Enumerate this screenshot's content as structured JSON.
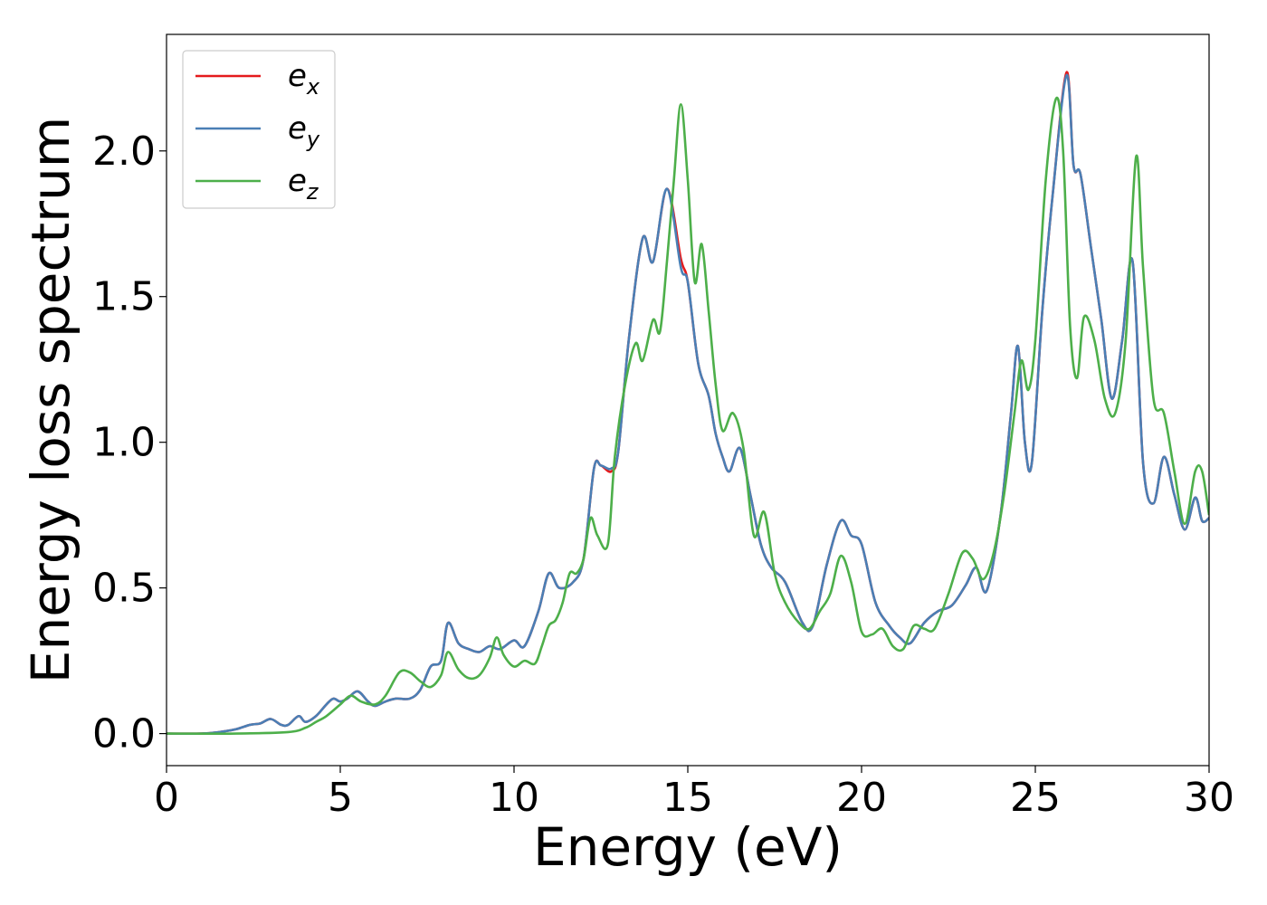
{
  "chart_data": {
    "type": "line",
    "xlabel": "Energy (eV)",
    "ylabel": "Energy loss spectrum",
    "xlim": [
      0,
      30
    ],
    "ylim": [
      -0.11,
      2.4
    ],
    "xticks": [
      0,
      5,
      10,
      15,
      20,
      25,
      30
    ],
    "xtick_labels": [
      "0",
      "5",
      "10",
      "15",
      "20",
      "25",
      "30"
    ],
    "yticks": [
      0.0,
      0.5,
      1.0,
      1.5,
      2.0
    ],
    "ytick_labels": [
      "0.0",
      "0.5",
      "1.0",
      "1.5",
      "2.0"
    ],
    "grid": false,
    "legend_position": "top-left",
    "series": [
      {
        "name": "e_x",
        "legend_base": "e",
        "legend_sub": "x",
        "color": "#e41a1c",
        "x": [
          0,
          1,
          1.5,
          2,
          2.4,
          2.7,
          3.0,
          3.3,
          3.5,
          3.8,
          4.0,
          4.3,
          4.6,
          4.8,
          5.0,
          5.2,
          5.5,
          5.8,
          6.0,
          6.3,
          6.6,
          7.0,
          7.3,
          7.6,
          7.9,
          8.1,
          8.4,
          8.7,
          9.0,
          9.3,
          9.6,
          10.0,
          10.3,
          10.7,
          11.0,
          11.3,
          11.7,
          12.0,
          12.3,
          12.5,
          12.8,
          13.0,
          13.3,
          13.7,
          14.0,
          14.4,
          14.8,
          15.0,
          15.3,
          15.6,
          15.8,
          16.0,
          16.2,
          16.5,
          16.8,
          17.1,
          17.4,
          17.8,
          18.3,
          18.6,
          19.0,
          19.4,
          19.7,
          20.0,
          20.4,
          20.8,
          21.1,
          21.4,
          21.8,
          22.2,
          22.6,
          23.0,
          23.3,
          23.6,
          24.0,
          24.3,
          24.5,
          24.7,
          24.9,
          25.2,
          25.5,
          25.9,
          26.1,
          26.3,
          26.6,
          26.9,
          27.2,
          27.5,
          27.8,
          28.1,
          28.4,
          28.7,
          29.0,
          29.3,
          29.6,
          29.8,
          30.0
        ],
        "y": [
          0.0,
          0.0,
          0.005,
          0.015,
          0.03,
          0.035,
          0.05,
          0.03,
          0.03,
          0.06,
          0.04,
          0.06,
          0.1,
          0.12,
          0.11,
          0.12,
          0.145,
          0.11,
          0.095,
          0.11,
          0.12,
          0.12,
          0.15,
          0.23,
          0.25,
          0.38,
          0.31,
          0.29,
          0.28,
          0.3,
          0.29,
          0.32,
          0.3,
          0.42,
          0.55,
          0.5,
          0.52,
          0.6,
          0.91,
          0.92,
          0.9,
          0.97,
          1.35,
          1.7,
          1.62,
          1.87,
          1.63,
          1.55,
          1.27,
          1.16,
          1.03,
          0.95,
          0.9,
          0.98,
          0.82,
          0.65,
          0.57,
          0.52,
          0.38,
          0.37,
          0.58,
          0.73,
          0.68,
          0.65,
          0.45,
          0.37,
          0.33,
          0.31,
          0.38,
          0.42,
          0.44,
          0.51,
          0.57,
          0.49,
          0.75,
          1.1,
          1.33,
          1.0,
          0.93,
          1.45,
          1.85,
          2.27,
          1.95,
          1.92,
          1.67,
          1.42,
          1.15,
          1.35,
          1.62,
          0.93,
          0.79,
          0.95,
          0.82,
          0.7,
          0.81,
          0.73,
          0.74
        ]
      },
      {
        "name": "e_y",
        "legend_base": "e",
        "legend_sub": "y",
        "color": "#4a7fb5",
        "x": [
          0,
          1,
          1.5,
          2,
          2.4,
          2.7,
          3.0,
          3.3,
          3.5,
          3.8,
          4.0,
          4.3,
          4.6,
          4.8,
          5.0,
          5.2,
          5.5,
          5.8,
          6.0,
          6.3,
          6.6,
          7.0,
          7.3,
          7.6,
          7.9,
          8.1,
          8.4,
          8.7,
          9.0,
          9.3,
          9.6,
          10.0,
          10.3,
          10.7,
          11.0,
          11.3,
          11.7,
          12.0,
          12.3,
          12.5,
          12.8,
          13.0,
          13.3,
          13.7,
          14.0,
          14.4,
          14.8,
          15.0,
          15.3,
          15.6,
          15.8,
          16.0,
          16.2,
          16.5,
          16.8,
          17.1,
          17.4,
          17.8,
          18.3,
          18.6,
          19.0,
          19.4,
          19.7,
          20.0,
          20.4,
          20.8,
          21.1,
          21.4,
          21.8,
          22.2,
          22.6,
          23.0,
          23.3,
          23.6,
          24.0,
          24.3,
          24.5,
          24.7,
          24.9,
          25.2,
          25.5,
          25.9,
          26.1,
          26.3,
          26.6,
          26.9,
          27.2,
          27.5,
          27.8,
          28.1,
          28.4,
          28.7,
          29.0,
          29.3,
          29.6,
          29.8,
          30.0
        ],
        "y": [
          0.0,
          0.0,
          0.005,
          0.015,
          0.03,
          0.035,
          0.05,
          0.03,
          0.03,
          0.06,
          0.04,
          0.06,
          0.1,
          0.12,
          0.11,
          0.12,
          0.145,
          0.11,
          0.095,
          0.11,
          0.12,
          0.12,
          0.15,
          0.23,
          0.25,
          0.38,
          0.31,
          0.29,
          0.28,
          0.3,
          0.29,
          0.32,
          0.3,
          0.42,
          0.55,
          0.5,
          0.52,
          0.6,
          0.91,
          0.92,
          0.91,
          0.97,
          1.35,
          1.7,
          1.62,
          1.87,
          1.6,
          1.55,
          1.27,
          1.16,
          1.03,
          0.95,
          0.9,
          0.98,
          0.82,
          0.65,
          0.57,
          0.52,
          0.38,
          0.37,
          0.58,
          0.73,
          0.68,
          0.65,
          0.45,
          0.37,
          0.33,
          0.31,
          0.38,
          0.42,
          0.44,
          0.51,
          0.57,
          0.49,
          0.75,
          1.1,
          1.33,
          1.0,
          0.93,
          1.45,
          1.85,
          2.26,
          1.95,
          1.92,
          1.67,
          1.42,
          1.15,
          1.35,
          1.62,
          0.93,
          0.79,
          0.95,
          0.82,
          0.7,
          0.81,
          0.73,
          0.74
        ]
      },
      {
        "name": "e_z",
        "legend_base": "e",
        "legend_sub": "z",
        "color": "#4daf4a",
        "x": [
          0,
          2,
          3.5,
          4.0,
          4.3,
          4.6,
          5.0,
          5.3,
          5.6,
          6.0,
          6.3,
          6.7,
          7.0,
          7.3,
          7.6,
          7.9,
          8.1,
          8.4,
          8.7,
          9.0,
          9.3,
          9.5,
          9.7,
          10.0,
          10.3,
          10.6,
          10.8,
          11.0,
          11.2,
          11.4,
          11.6,
          11.8,
          12.0,
          12.2,
          12.4,
          12.7,
          12.9,
          13.2,
          13.5,
          13.7,
          14.0,
          14.2,
          14.4,
          14.6,
          14.8,
          15.0,
          15.2,
          15.4,
          15.6,
          15.8,
          16.0,
          16.3,
          16.6,
          16.9,
          17.2,
          17.5,
          17.8,
          18.2,
          18.5,
          18.8,
          19.1,
          19.4,
          19.7,
          20.0,
          20.3,
          20.6,
          20.9,
          21.2,
          21.5,
          21.8,
          22.1,
          22.5,
          22.9,
          23.2,
          23.5,
          23.8,
          24.1,
          24.4,
          24.6,
          24.8,
          25.0,
          25.3,
          25.6,
          25.8,
          26.0,
          26.2,
          26.4,
          26.7,
          27.0,
          27.3,
          27.6,
          27.9,
          28.1,
          28.4,
          28.7,
          29.0,
          29.3,
          29.6,
          29.8,
          30.0
        ],
        "y": [
          0.0,
          0.0,
          0.005,
          0.02,
          0.04,
          0.06,
          0.1,
          0.13,
          0.11,
          0.1,
          0.13,
          0.21,
          0.21,
          0.18,
          0.16,
          0.2,
          0.28,
          0.22,
          0.19,
          0.2,
          0.26,
          0.33,
          0.27,
          0.23,
          0.25,
          0.24,
          0.3,
          0.37,
          0.39,
          0.45,
          0.55,
          0.55,
          0.6,
          0.74,
          0.68,
          0.65,
          0.95,
          1.2,
          1.34,
          1.28,
          1.42,
          1.38,
          1.62,
          1.9,
          2.16,
          1.9,
          1.55,
          1.68,
          1.45,
          1.2,
          1.04,
          1.1,
          0.98,
          0.68,
          0.76,
          0.55,
          0.45,
          0.38,
          0.36,
          0.42,
          0.48,
          0.61,
          0.52,
          0.35,
          0.34,
          0.36,
          0.3,
          0.29,
          0.37,
          0.36,
          0.36,
          0.48,
          0.62,
          0.6,
          0.53,
          0.62,
          0.82,
          1.1,
          1.28,
          1.18,
          1.35,
          1.9,
          2.18,
          2.0,
          1.4,
          1.22,
          1.43,
          1.35,
          1.15,
          1.1,
          1.35,
          1.98,
          1.6,
          1.15,
          1.1,
          0.9,
          0.72,
          0.9,
          0.9,
          0.75
        ]
      }
    ]
  }
}
